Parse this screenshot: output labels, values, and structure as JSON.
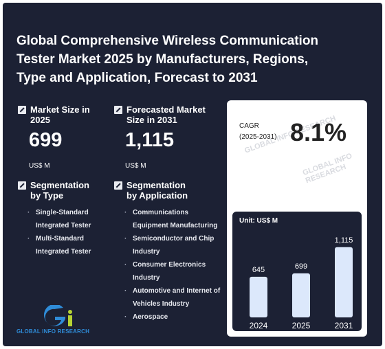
{
  "title": "Global Comprehensive Wireless Communication Tester Market 2025 by Manufacturers, Regions, Type and Application, Forecast to 2031",
  "market_size": {
    "label": "Market Size in 2025",
    "value": "699",
    "unit": "US$ M"
  },
  "forecast": {
    "label": "Forecasted Market Size in 2031",
    "value": "1,115",
    "unit": "US$ M"
  },
  "seg_type": {
    "label": "Segmentation by Type",
    "items": [
      "Single-Standard Integrated Tester",
      "Multi-Standard Integrated Tester"
    ]
  },
  "seg_app": {
    "label": "Segmentation by Application",
    "items": [
      "Communications Equipment Manufacturing",
      "Semiconductor and Chip Industry",
      "Consumer Electronics Industry",
      "Automotive and Internet of Vehicles Industry",
      "Aerospace"
    ]
  },
  "cagr": {
    "label_line1": "CAGR",
    "label_line2": "(2025-2031)",
    "value": "8.1%"
  },
  "watermark": "GLOBAL INFO RESEARCH",
  "logo_text": "GLOBAL INFO RESEARCH",
  "chart_data": {
    "type": "bar",
    "unit_label": "Unit: US$ M",
    "categories": [
      "2024",
      "2025",
      "2031"
    ],
    "values": [
      645,
      699,
      1115
    ],
    "value_labels": [
      "645",
      "699",
      "1,115"
    ],
    "ylim": [
      0,
      1200
    ]
  },
  "colors": {
    "background": "#1c2134",
    "bar": "#dce8fb",
    "panel": "#ffffff"
  }
}
